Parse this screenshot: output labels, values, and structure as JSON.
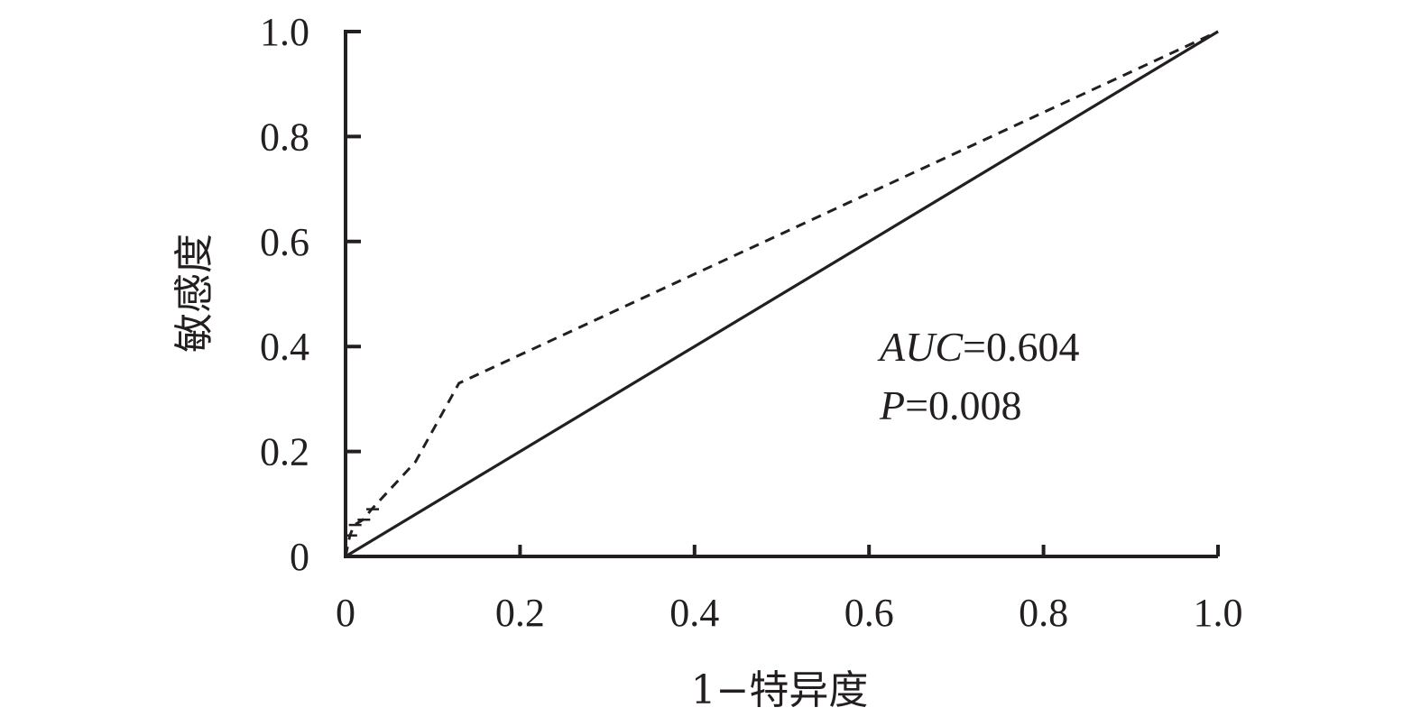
{
  "chart_data": {
    "type": "line",
    "xlabel": "1−特异度",
    "ylabel": "敏感度",
    "xlim": [
      0,
      1.0
    ],
    "ylim": [
      0,
      1.0
    ],
    "x_ticks": [
      "0",
      "0.2",
      "0.4",
      "0.6",
      "0.8",
      "1.0"
    ],
    "y_ticks": [
      "0",
      "0.2",
      "0.4",
      "0.6",
      "0.8",
      "1.0"
    ],
    "grid": false,
    "legend": false,
    "series": [
      {
        "style": "dashed",
        "color": "#231f20",
        "x": [
          0,
          0.005,
          0.01,
          0.02,
          0.03,
          0.08,
          0.13,
          1.0
        ],
        "y": [
          0,
          0.04,
          0.06,
          0.07,
          0.09,
          0.18,
          0.33,
          1.0
        ]
      },
      {
        "style": "solid",
        "color": "#231f20",
        "x": [
          0,
          1.0
        ],
        "y": [
          0,
          1.0
        ]
      }
    ],
    "annotations": {
      "auc_label": "AUC",
      "auc_value": "=0.604",
      "p_label": "P",
      "p_value": "=0.008"
    }
  }
}
